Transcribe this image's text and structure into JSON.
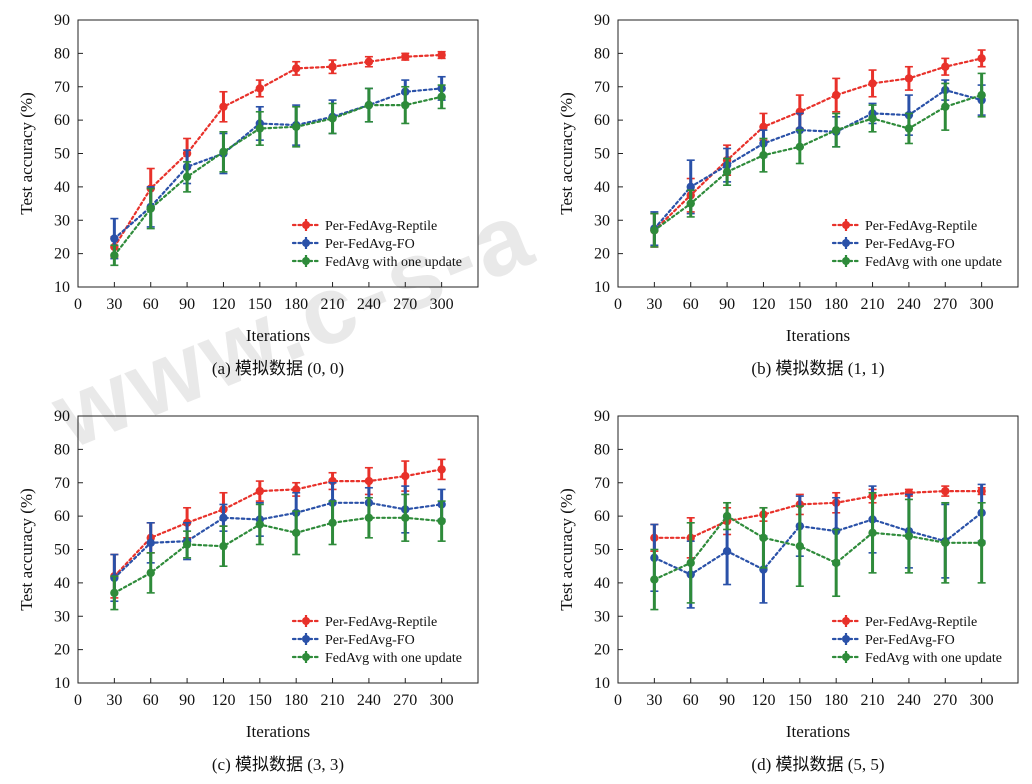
{
  "watermark": "www.c-s-a",
  "chart_data": [
    {
      "type": "line",
      "caption": "(a) 模拟数据 (0, 0)",
      "xlabel": "Iterations",
      "ylabel": "Test accuracy (%)",
      "xlim": [
        0,
        330
      ],
      "ylim": [
        10,
        90
      ],
      "x": [
        30,
        60,
        90,
        120,
        150,
        180,
        210,
        240,
        270,
        300
      ],
      "xticks": [
        0,
        30,
        60,
        90,
        120,
        150,
        180,
        210,
        240,
        270,
        300
      ],
      "yticks": [
        10,
        20,
        30,
        40,
        50,
        60,
        70,
        80,
        90
      ],
      "legend": "bottom-right",
      "grid": false,
      "series": [
        {
          "name": "Per-FedAvg-Reptile",
          "color": "#e8312a",
          "values": [
            22,
            39.5,
            50,
            64,
            69.5,
            75.5,
            76,
            77.5,
            79,
            79.5
          ],
          "errors": [
            3,
            6,
            4.5,
            4.5,
            2.5,
            2,
            2,
            1.5,
            1,
            1
          ]
        },
        {
          "name": "Per-FedAvg-FO",
          "color": "#2a51a8",
          "values": [
            24.5,
            34,
            46,
            50,
            59,
            58.5,
            61,
            64.5,
            68.5,
            69.5
          ],
          "errors": [
            6,
            6,
            5,
            6,
            5,
            6,
            5,
            5,
            3.5,
            3.5
          ]
        },
        {
          "name": "FedAvg with one update",
          "color": "#2e8b3a",
          "values": [
            19.5,
            33.5,
            43,
            50.5,
            57.5,
            58,
            60.5,
            64.5,
            64.5,
            67
          ],
          "errors": [
            3,
            6,
            4.5,
            6,
            5,
            6,
            4.5,
            5,
            5.5,
            3.5
          ]
        }
      ]
    },
    {
      "type": "line",
      "caption": "(b) 模拟数据 (1, 1)",
      "xlabel": "Iterations",
      "ylabel": "Test accuracy (%)",
      "xlim": [
        0,
        330
      ],
      "ylim": [
        10,
        90
      ],
      "x": [
        30,
        60,
        90,
        120,
        150,
        180,
        210,
        240,
        270,
        300
      ],
      "xticks": [
        0,
        30,
        60,
        90,
        120,
        150,
        180,
        210,
        240,
        270,
        300
      ],
      "yticks": [
        10,
        20,
        30,
        40,
        50,
        60,
        70,
        80,
        90
      ],
      "legend": "bottom-right",
      "grid": false,
      "series": [
        {
          "name": "Per-FedAvg-Reptile",
          "color": "#e8312a",
          "values": [
            27,
            37.5,
            48,
            58,
            62.5,
            67.5,
            71,
            72.5,
            76,
            78.5
          ],
          "errors": [
            5,
            5,
            4.5,
            4,
            5,
            5,
            4,
            3.5,
            2.5,
            2.5
          ]
        },
        {
          "name": "Per-FedAvg-FO",
          "color": "#2a51a8",
          "values": [
            27.5,
            40,
            46.5,
            53,
            57,
            56.5,
            62,
            61.5,
            69,
            66
          ],
          "errors": [
            5,
            8,
            5,
            4,
            5,
            4.5,
            3,
            6,
            3,
            4.5
          ]
        },
        {
          "name": "FedAvg with one update",
          "color": "#2e8b3a",
          "values": [
            27,
            35,
            44.5,
            49.5,
            52,
            57,
            60.5,
            57.5,
            64,
            67.5
          ],
          "errors": [
            5,
            4,
            4,
            5,
            5,
            5,
            4,
            4.5,
            7,
            6.5
          ]
        }
      ]
    },
    {
      "type": "line",
      "caption": "(c) 模拟数据 (3, 3)",
      "xlabel": "Iterations",
      "ylabel": "Test accuracy (%)",
      "xlim": [
        0,
        330
      ],
      "ylim": [
        10,
        90
      ],
      "x": [
        30,
        60,
        90,
        120,
        150,
        180,
        210,
        240,
        270,
        300
      ],
      "xticks": [
        0,
        30,
        60,
        90,
        120,
        150,
        180,
        210,
        240,
        270,
        300
      ],
      "yticks": [
        10,
        20,
        30,
        40,
        50,
        60,
        70,
        80,
        90
      ],
      "legend": "bottom-right",
      "grid": false,
      "series": [
        {
          "name": "Per-FedAvg-Reptile",
          "color": "#e8312a",
          "values": [
            42,
            53.5,
            58,
            62,
            67.5,
            68,
            70.5,
            70.5,
            72,
            74
          ],
          "errors": [
            6.5,
            4.5,
            4.5,
            5,
            3,
            2,
            2.5,
            4,
            4.5,
            3
          ]
        },
        {
          "name": "Per-FedAvg-FO",
          "color": "#2a51a8",
          "values": [
            41.5,
            52,
            52.5,
            59.5,
            59,
            61,
            64,
            64,
            62,
            63.5
          ],
          "errors": [
            7,
            6,
            5.5,
            4,
            5,
            6,
            6,
            4.5,
            7,
            4.5
          ]
        },
        {
          "name": "FedAvg with one update",
          "color": "#2e8b3a",
          "values": [
            37,
            43,
            51.5,
            51,
            57.5,
            55,
            58,
            59.5,
            59.5,
            58.5
          ],
          "errors": [
            5,
            6,
            4,
            6,
            6,
            6.5,
            6.5,
            6,
            7,
            6
          ]
        }
      ]
    },
    {
      "type": "line",
      "caption": "(d) 模拟数据 (5, 5)",
      "xlabel": "Iterations",
      "ylabel": "Test accuracy (%)",
      "xlim": [
        0,
        330
      ],
      "ylim": [
        10,
        90
      ],
      "x": [
        30,
        60,
        90,
        120,
        150,
        180,
        210,
        240,
        270,
        300
      ],
      "xticks": [
        0,
        30,
        60,
        90,
        120,
        150,
        180,
        210,
        240,
        270,
        300
      ],
      "yticks": [
        10,
        20,
        30,
        40,
        50,
        60,
        70,
        80,
        90
      ],
      "legend": "bottom-right",
      "grid": false,
      "series": [
        {
          "name": "Per-FedAvg-Reptile",
          "color": "#e8312a",
          "values": [
            53.5,
            53.5,
            58.5,
            60.5,
            63.5,
            64,
            66,
            67,
            67.5,
            67.5
          ],
          "errors": [
            4,
            6,
            4,
            2,
            3,
            3,
            2,
            1,
            1.5,
            1
          ]
        },
        {
          "name": "Per-FedAvg-FO",
          "color": "#2a51a8",
          "values": [
            47.5,
            42.5,
            49.5,
            44,
            57,
            55.5,
            59,
            55.5,
            52.5,
            61
          ],
          "errors": [
            10,
            10,
            10,
            10,
            9,
            10,
            10,
            11,
            11,
            8.5
          ]
        },
        {
          "name": "FedAvg with one update",
          "color": "#2e8b3a",
          "values": [
            41,
            46,
            60,
            53.5,
            51,
            46,
            55,
            54,
            52,
            52
          ],
          "errors": [
            9,
            12,
            4,
            9,
            12,
            10,
            12,
            11,
            12,
            12
          ]
        }
      ]
    }
  ]
}
